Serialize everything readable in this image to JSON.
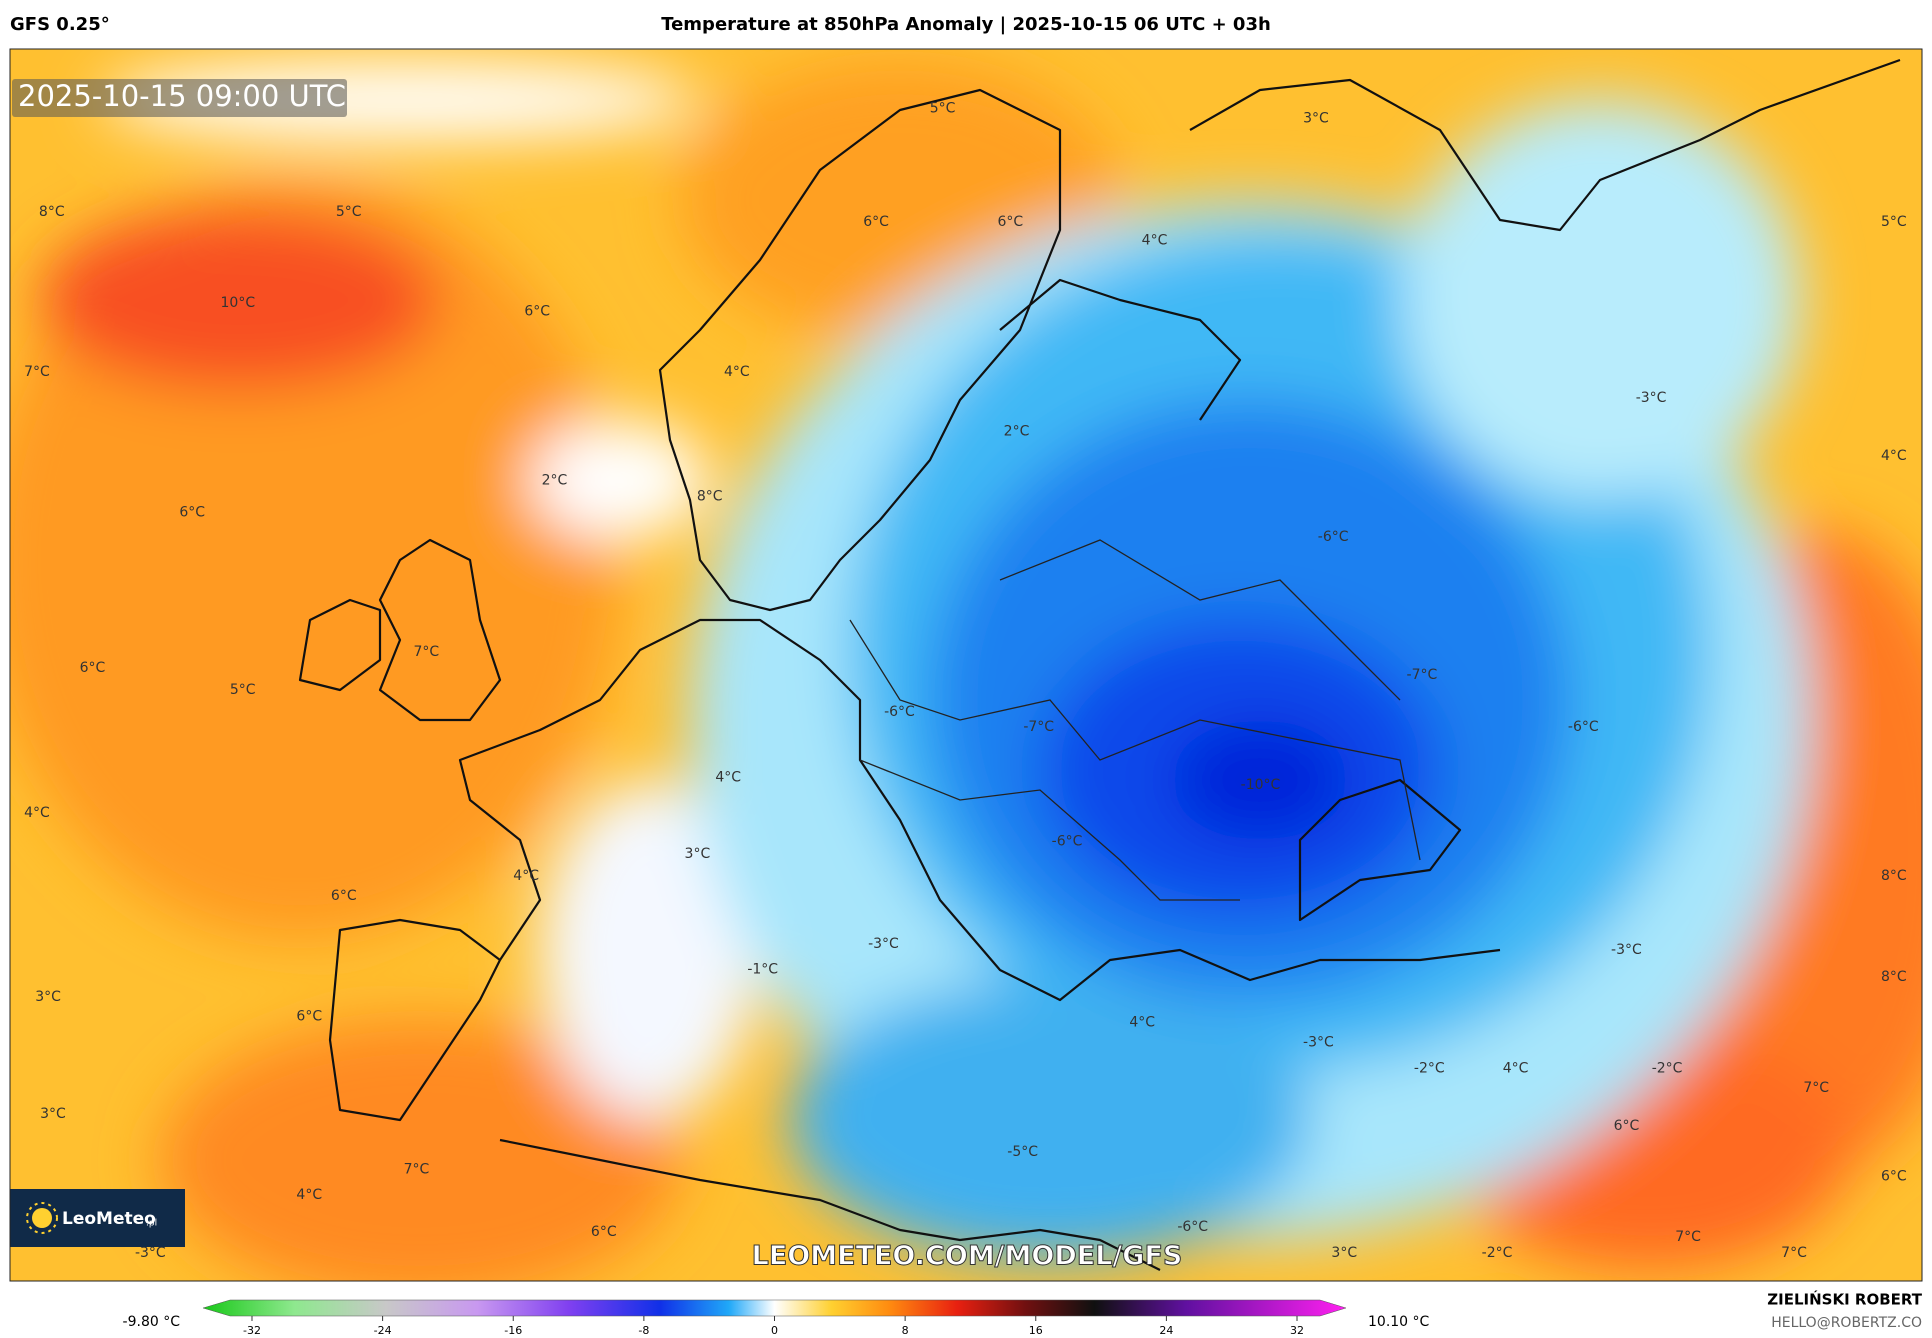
{
  "header": {
    "model": "GFS 0.25°",
    "title": "Temperature at 850hPa Anomaly | 2025-10-15 06 UTC + 03h"
  },
  "map": {
    "timestamp": "2025-10-15 09:00 UTC",
    "watermark": "LEOMETEO.COM/MODEL/GFS",
    "logo": {
      "name": "LeoMeteo",
      "suffix": ".pl"
    },
    "labels": [
      "5°C",
      "3°C",
      "8°C",
      "5°C",
      "6°C",
      "6°C",
      "4°C",
      "5°C",
      "10°C",
      "6°C",
      "7°C",
      "4°C",
      "-3°C",
      "2°C",
      "4°C",
      "2°C",
      "6°C",
      "8°C",
      "-6°C",
      "7°C",
      "6°C",
      "-7°C",
      "5°C",
      "-6°C",
      "-7°C",
      "-6°C",
      "4°C",
      "-10°C",
      "4°C",
      "-6°C",
      "3°C",
      "4°C",
      "8°C",
      "6°C",
      "-3°C",
      "-3°C",
      "-1°C",
      "8°C",
      "3°C",
      "6°C",
      "4°C",
      "-3°C",
      "-2°C",
      "4°C",
      "-2°C",
      "7°C",
      "3°C",
      "6°C",
      "-5°C",
      "7°C",
      "6°C",
      "4°C",
      "-6°C",
      "6°C",
      "7°C",
      "3°C",
      "-2°C",
      "7°C",
      "-3°C"
    ]
  },
  "colorbar": {
    "min_label": "-9.80 °C",
    "max_label": "10.10 °C",
    "clim": [
      -35,
      35
    ],
    "ticks": [
      -32,
      -24,
      -16,
      -8,
      0,
      8,
      16,
      24,
      32
    ]
  },
  "credits": {
    "author": "ZIELIŃSKI ROBERT",
    "email": "HELLO@ROBERTZ.CO"
  }
}
